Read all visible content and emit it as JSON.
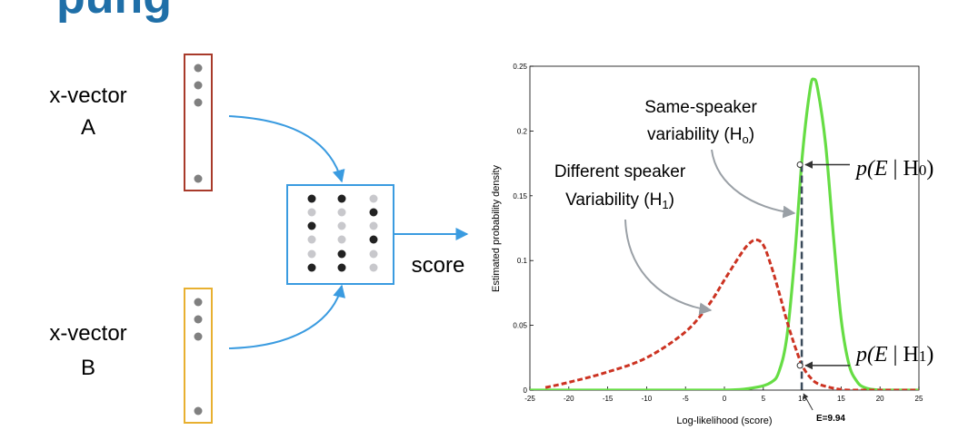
{
  "slide": {
    "title_fragment": "pung",
    "xvec_a_line1": "x-vector",
    "xvec_a_line2": "A",
    "xvec_b_line1": "x-vector",
    "xvec_b_line2": "B",
    "score_label": "score"
  },
  "plot": {
    "ylabel": "Estimated probability density",
    "xlabel": "Log-likelihood (score)",
    "xlim": [
      -25,
      25
    ],
    "ylim": [
      0,
      0.25
    ],
    "xticks": [
      "-25",
      "-20",
      "-15",
      "-10",
      "-5",
      "0",
      "5",
      "10",
      "15",
      "20",
      "25"
    ],
    "yticks": [
      "0",
      "0.05",
      "0.1",
      "0.15",
      "0.2",
      "0.25"
    ],
    "evidence_value": 9.94,
    "evidence_label": "E=9.94",
    "same_label_line1": "Same-speaker",
    "same_label_line2": "variability (H",
    "same_label_sub": "o",
    "same_label_close": ")",
    "diff_label_line1": "Different speaker",
    "diff_label_line2": "Variability (H",
    "diff_label_sub": "1",
    "diff_label_close": ")",
    "p_h0_prefix": "p(",
    "p_h0_var": "E",
    "p_h0_suffix": " | H",
    "p_h0_sub": "0",
    "p_h0_close": ")",
    "p_h1_prefix": "p(",
    "p_h1_var": "E",
    "p_h1_suffix": " | H",
    "p_h1_sub": "1",
    "p_h1_close": ")",
    "p_h0_value": 0.174,
    "p_h1_value": 0.019
  },
  "chart_data": {
    "type": "line",
    "xlabel": "Log-likelihood (score)",
    "ylabel": "Estimated probability density",
    "xlim": [
      -25,
      25
    ],
    "ylim": [
      0,
      0.25
    ],
    "series": [
      {
        "name": "Same-speaker variability (Ho)",
        "color": "#66dd44",
        "style": "solid",
        "x": [
          -25,
          -10,
          0,
          4,
          6,
          7,
          8,
          9,
          10,
          11,
          11.5,
          12,
          13,
          14,
          15,
          16,
          17,
          18,
          20,
          25
        ],
        "y": [
          0,
          0,
          0,
          0.002,
          0.006,
          0.014,
          0.04,
          0.1,
          0.18,
          0.232,
          0.24,
          0.232,
          0.19,
          0.12,
          0.055,
          0.02,
          0.007,
          0.002,
          0,
          0
        ]
      },
      {
        "name": "Different speaker Variability (H1)",
        "color": "#cc3322",
        "style": "dashed",
        "x": [
          -23,
          -20,
          -15,
          -10,
          -5,
          -2,
          0,
          2,
          3,
          4,
          5,
          6,
          7,
          8,
          9,
          10,
          11,
          12,
          14,
          16,
          20,
          25
        ],
        "y": [
          0.002,
          0.006,
          0.014,
          0.025,
          0.045,
          0.066,
          0.085,
          0.104,
          0.112,
          0.116,
          0.112,
          0.096,
          0.076,
          0.054,
          0.035,
          0.019,
          0.01,
          0.005,
          0.0015,
          0,
          0,
          0
        ]
      }
    ],
    "annotations": [
      "E=9.94",
      "p(E | H0)",
      "p(E | H1)"
    ]
  },
  "colors": {
    "blue": "#3a9be0",
    "red_box": "#a83a2a",
    "yellow_box": "#e8b030",
    "dot_gray": "#808080",
    "dot_dark": "#222222",
    "dot_light": "#c8c8cc",
    "title_blue": "#1f6fa8",
    "grid": "#000000"
  }
}
